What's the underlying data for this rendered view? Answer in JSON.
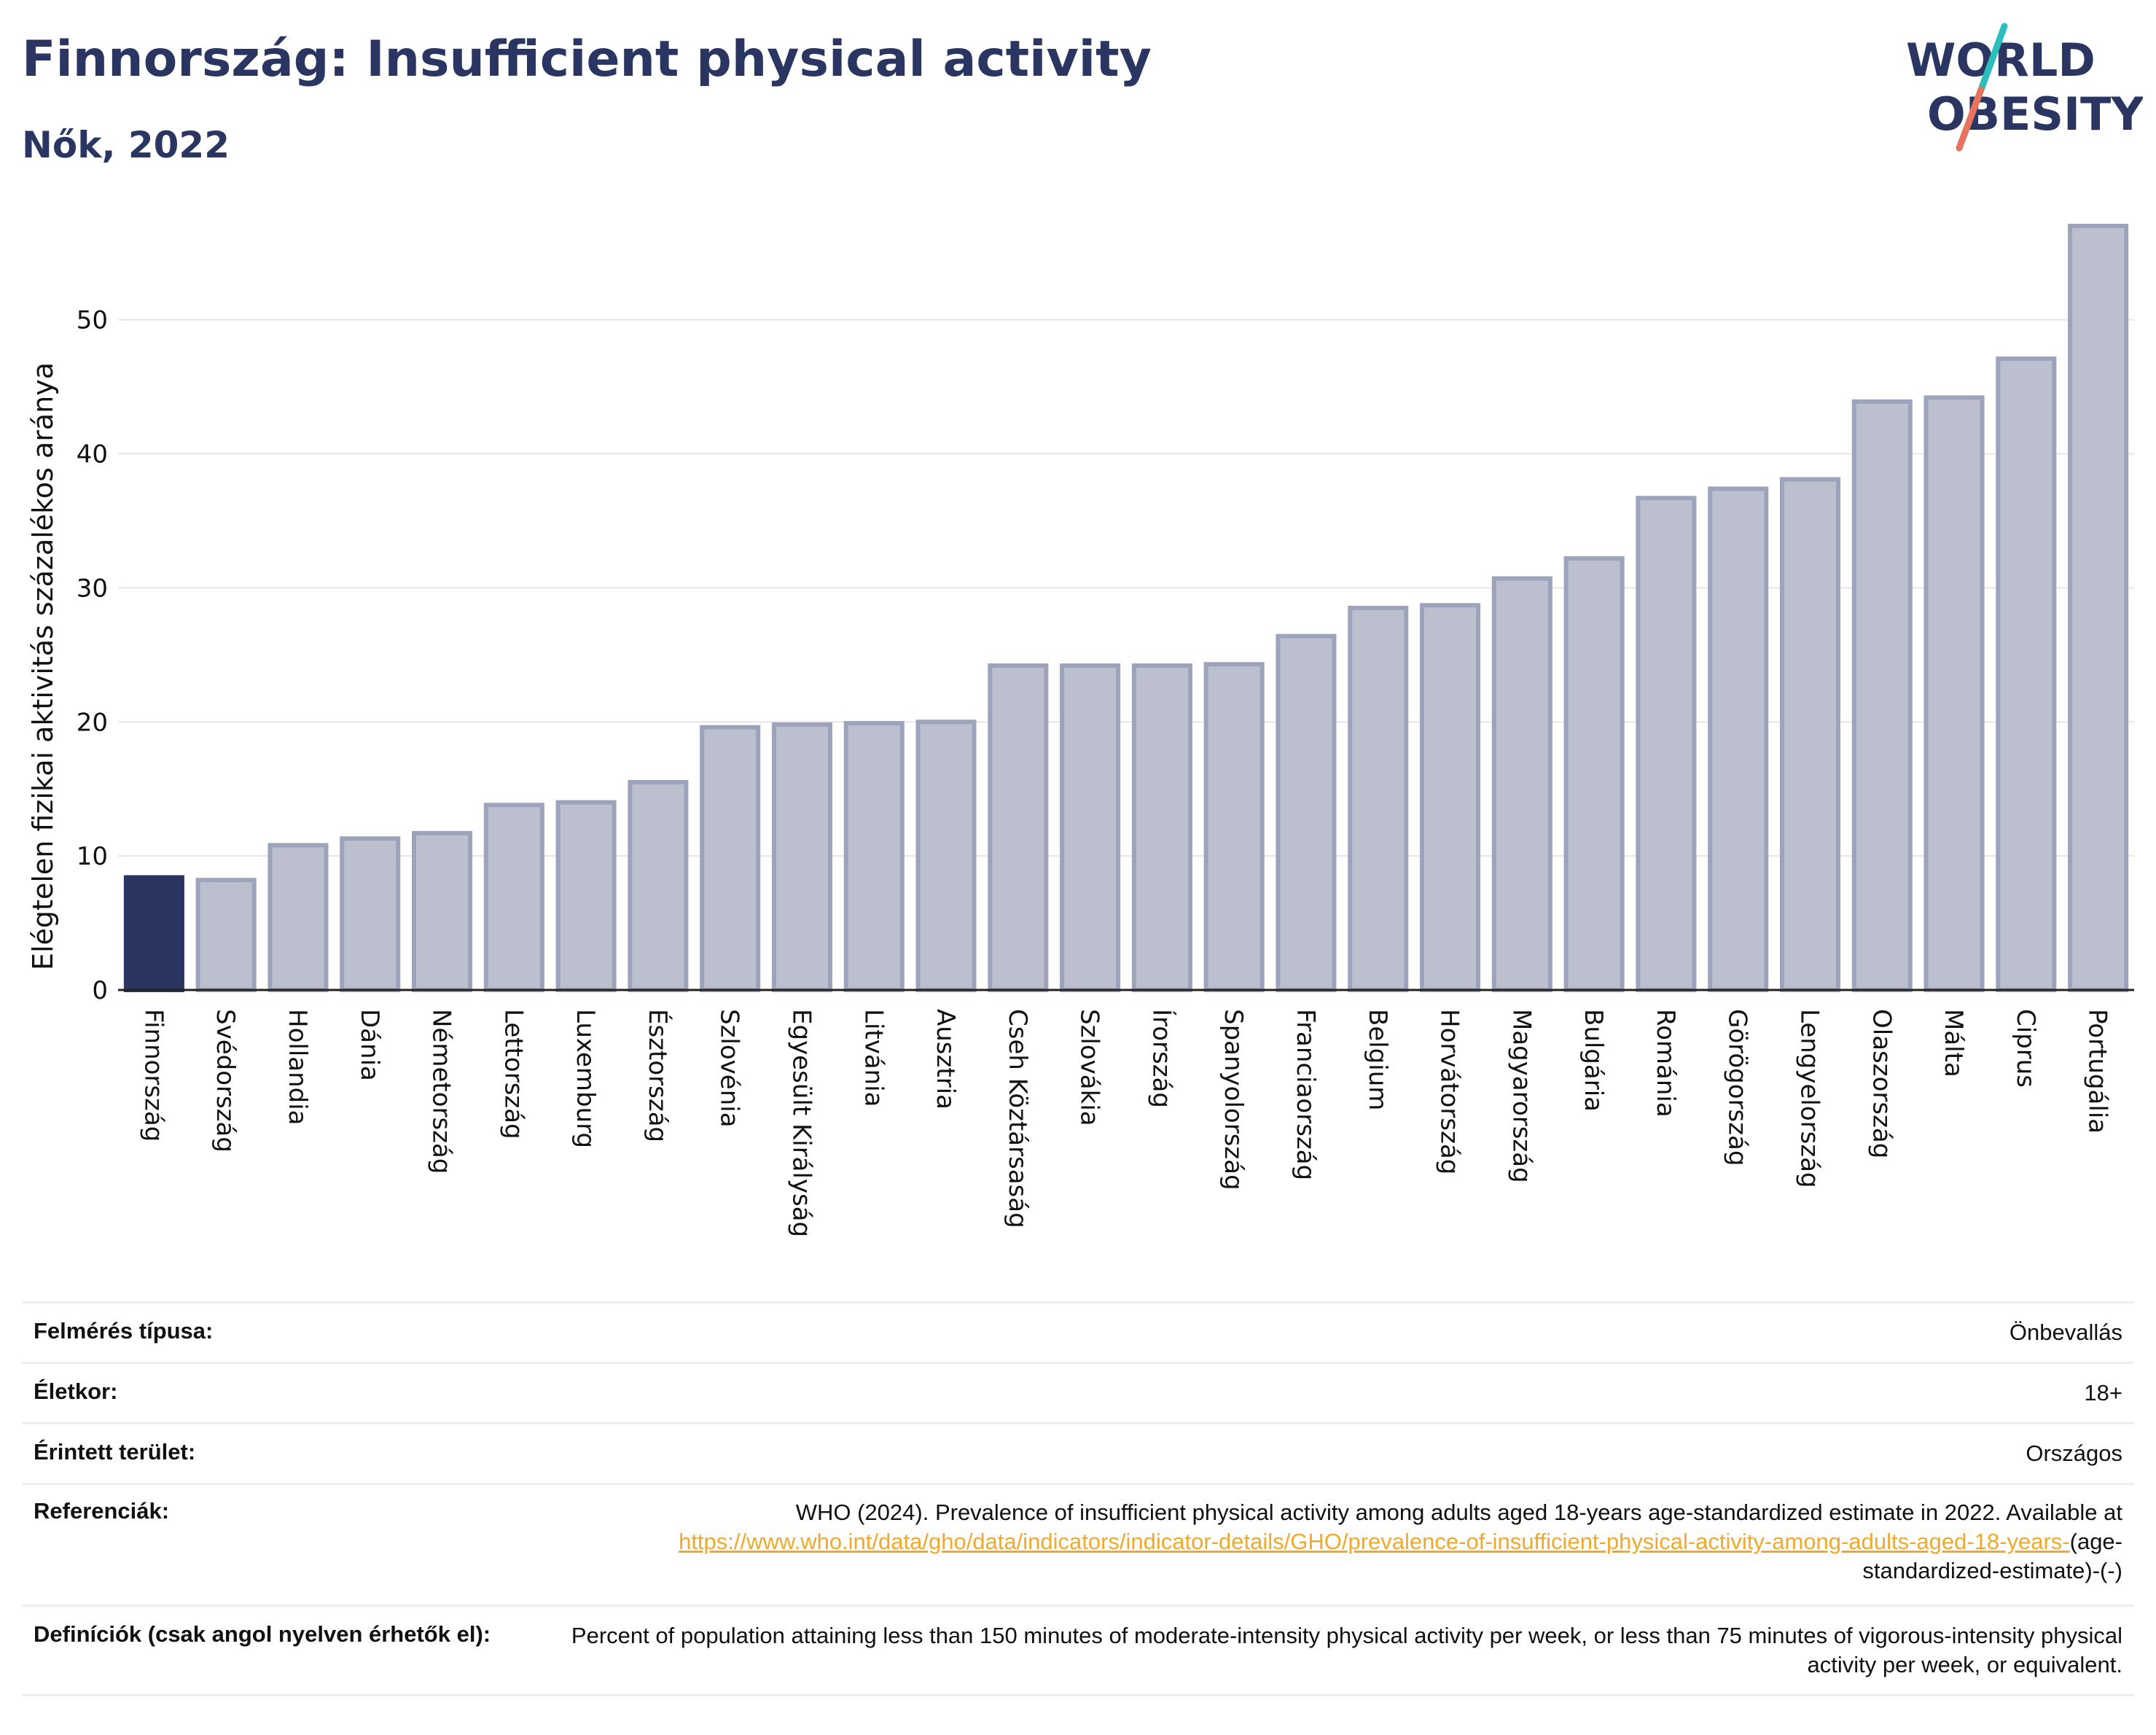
{
  "header": {
    "title": "Finnország: Insufficient physical activity",
    "subtitle": "Nők, 2022",
    "logo_text_line1": "WORLD",
    "logo_text_line2": "OBESITY"
  },
  "colors": {
    "highlight_bar": "#2a3561",
    "other_bar": "#bcc0ce",
    "other_bar_border": "#9da3ba",
    "title": "#2a3561",
    "link": "#f0a92a",
    "logo_teal": "#2dbdbd",
    "logo_coral": "#e8735e"
  },
  "chart_data": {
    "type": "bar",
    "title": "Finnország: Insufficient physical activity",
    "subtitle": "Nők, 2022",
    "ylabel": "Elégtelen fizikai aktivitás százalékos aránya",
    "xlabel": "",
    "ylim": [
      0,
      57
    ],
    "yticks": [
      0,
      10,
      20,
      30,
      40,
      50
    ],
    "grid": true,
    "highlight": "Finnország",
    "categories": [
      "Finnország",
      "Svédország",
      "Hollandia",
      "Dánia",
      "Németország",
      "Lettország",
      "Luxemburg",
      "Észtország",
      "Szlovénia",
      "Egyesült Királyság",
      "Litvánia",
      "Ausztria",
      "Cseh Köztársaság",
      "Szlovákia",
      "Írország",
      "Spanyolország",
      "Franciaország",
      "Belgium",
      "Horvátország",
      "Magyarország",
      "Bulgária",
      "Románia",
      "Görögország",
      "Lengyelország",
      "Olaszország",
      "Málta",
      "Ciprus",
      "Portugália"
    ],
    "values": [
      8.4,
      8.2,
      10.8,
      11.3,
      11.7,
      13.8,
      14.0,
      15.5,
      19.6,
      19.8,
      19.9,
      20.0,
      24.2,
      24.2,
      24.2,
      24.3,
      26.4,
      28.5,
      28.7,
      30.7,
      32.2,
      36.7,
      37.4,
      38.1,
      43.9,
      44.2,
      47.1,
      57.0
    ]
  },
  "info": {
    "survey_type_label": "Felmérés típusa:",
    "survey_type_value": "Önbevallás",
    "age_label": "Életkor:",
    "age_value": "18+",
    "area_label": "Érintett terület:",
    "area_value": "Országos",
    "refs_label": "Referenciák:",
    "refs_text": "WHO (2024). Prevalence of insufficient physical activity among adults aged 18-years age-standardized estimate in 2022. Available at",
    "refs_link": "https://www.who.int/data/gho/data/indicators/indicator-details/GHO/prevalence-of-insufficient-physical-activity-among-adults-aged-18-years-",
    "refs_suffix": "(age-standardized-estimate)-(-)",
    "defs_label": "Definíciók (csak angol nyelven érhetők el):",
    "defs_text": "Percent of population attaining less than 150 minutes of moderate-intensity physical activity per week, or less than 75 minutes of vigorous-intensity physical activity per week, or equivalent."
  }
}
